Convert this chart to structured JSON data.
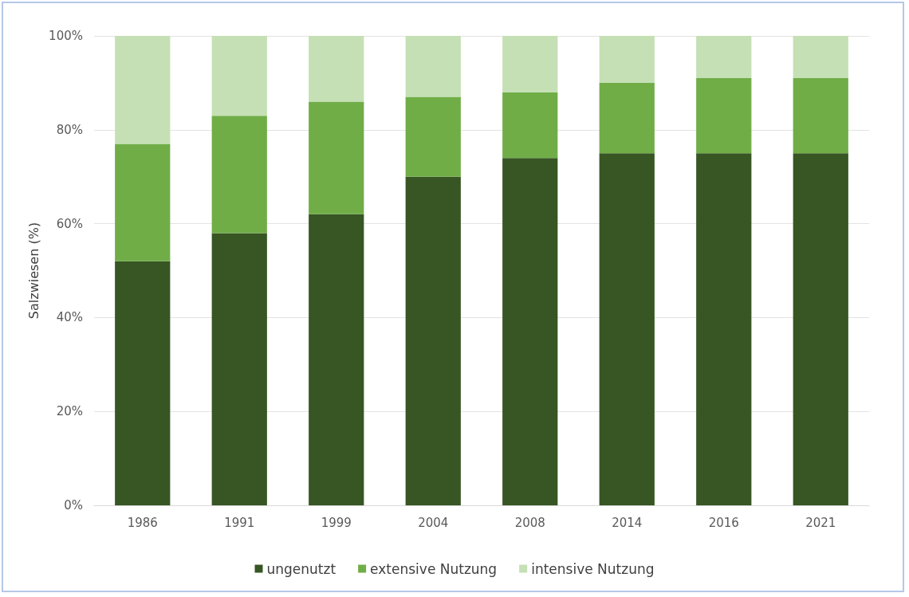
{
  "chart_data": {
    "type": "bar",
    "stacked": true,
    "ylabel": "Salzwiesen (%)",
    "categories": [
      "1986",
      "1991",
      "1999",
      "2004",
      "2008",
      "2014",
      "2016",
      "2021"
    ],
    "series": [
      {
        "name": "ungenutzt",
        "color": "#375623",
        "values": [
          52,
          58,
          62,
          70,
          74,
          75,
          75,
          75
        ]
      },
      {
        "name": "extensive Nutzung",
        "color": "#70ad47",
        "values": [
          25,
          25,
          24,
          17,
          14,
          15,
          16,
          16
        ]
      },
      {
        "name": "intensive Nutzung",
        "color": "#c5e0b4",
        "values": [
          23,
          17,
          14,
          13,
          12,
          10,
          9,
          9
        ]
      }
    ],
    "ylim": [
      0,
      100
    ],
    "yticks": [
      {
        "value": 0,
        "label": "0%"
      },
      {
        "value": 20,
        "label": "20%"
      },
      {
        "value": 40,
        "label": "40%"
      },
      {
        "value": 60,
        "label": "60%"
      },
      {
        "value": 80,
        "label": "80%"
      },
      {
        "value": 100,
        "label": "100%"
      }
    ],
    "grid": "y",
    "legend": "bottom"
  }
}
